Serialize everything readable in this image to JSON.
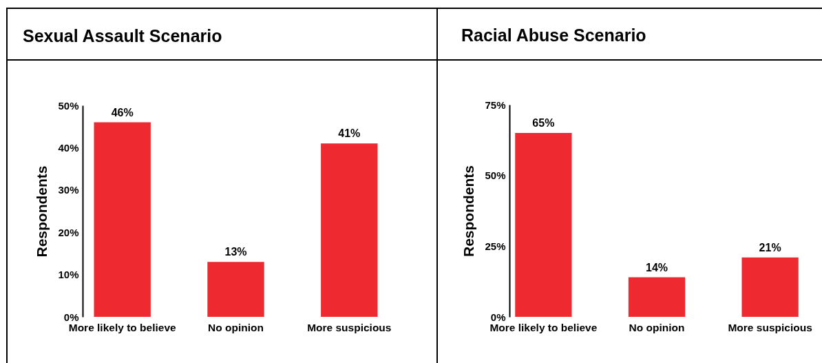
{
  "chart_data": [
    {
      "type": "bar",
      "title": "Sexual Assault Scenario",
      "ylabel": "Respondents",
      "categories": [
        "More likely to believe",
        "No opinion",
        "More suspicious"
      ],
      "values": [
        46,
        13,
        41
      ],
      "value_labels": [
        "46%",
        "13%",
        "41%"
      ],
      "color": "#ee2a30",
      "ylim": [
        0,
        50
      ],
      "yticks": [
        {
          "value": 0,
          "label": "0%"
        },
        {
          "value": 10,
          "label": "10%"
        },
        {
          "value": 20,
          "label": "20%"
        },
        {
          "value": 30,
          "label": "30%"
        },
        {
          "value": 40,
          "label": "40%"
        },
        {
          "value": 50,
          "label": "50%"
        }
      ],
      "grid": false
    },
    {
      "type": "bar",
      "title": "Racial Abuse Scenario",
      "ylabel": "Respondents",
      "categories": [
        "More likely to believe",
        "No opinion",
        "More suspicious"
      ],
      "values": [
        65,
        14,
        21
      ],
      "value_labels": [
        "65%",
        "14%",
        "21%"
      ],
      "color": "#ee2a30",
      "ylim": [
        0,
        75
      ],
      "yticks": [
        {
          "value": 0,
          "label": "0%"
        },
        {
          "value": 25,
          "label": "25%"
        },
        {
          "value": 50,
          "label": "50%"
        },
        {
          "value": 75,
          "label": "75%"
        }
      ],
      "grid": false
    }
  ]
}
